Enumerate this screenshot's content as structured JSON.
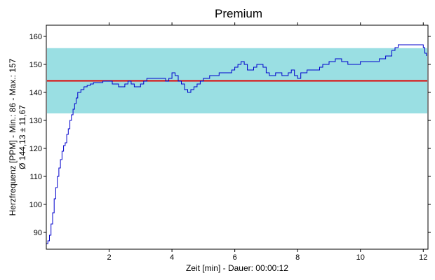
{
  "chart_data": {
    "type": "line",
    "title": "Premium",
    "xlabel": "Zeit [min] - Dauer: 00:00:12",
    "ylabel_lines": [
      "Herzfrequenz [PPM] - Min.: 86 - Max.: 157",
      "Ø 144,13 ± 11,67"
    ],
    "xlim": [
      0,
      12.15
    ],
    "ylim": [
      84,
      164
    ],
    "x_ticks": [
      2,
      4,
      6,
      8,
      10,
      12
    ],
    "y_ticks": [
      90,
      100,
      110,
      120,
      130,
      140,
      150,
      160
    ],
    "grid": false,
    "reference_band": {
      "from": 132.5,
      "to": 155.8,
      "color": "#9adfe3"
    },
    "reference_line": {
      "value": 144.13,
      "color": "#e00000"
    },
    "series": [
      {
        "color": "#0000cc",
        "x": [
          0,
          0.05,
          0.1,
          0.15,
          0.2,
          0.25,
          0.3,
          0.35,
          0.4,
          0.45,
          0.5,
          0.55,
          0.6,
          0.65,
          0.7,
          0.75,
          0.8,
          0.85,
          0.9,
          0.95,
          1.0,
          1.1,
          1.2,
          1.3,
          1.4,
          1.5,
          1.6,
          1.7,
          1.8,
          1.9,
          2.0,
          2.1,
          2.3,
          2.5,
          2.6,
          2.7,
          2.8,
          2.9,
          3.0,
          3.1,
          3.2,
          3.5,
          3.8,
          3.9,
          4.0,
          4.1,
          4.2,
          4.3,
          4.4,
          4.5,
          4.6,
          4.7,
          4.8,
          4.9,
          5.0,
          5.2,
          5.5,
          5.7,
          5.9,
          6.0,
          6.1,
          6.2,
          6.3,
          6.4,
          6.5,
          6.6,
          6.7,
          6.8,
          6.9,
          7.0,
          7.1,
          7.2,
          7.3,
          7.5,
          7.7,
          7.8,
          7.9,
          8.0,
          8.1,
          8.3,
          8.5,
          8.7,
          8.8,
          9.0,
          9.2,
          9.4,
          9.6,
          9.8,
          10.0,
          10.2,
          10.4,
          10.6,
          10.8,
          10.9,
          11.0,
          11.1,
          11.2,
          11.4,
          11.6,
          11.8,
          12.0,
          12.05,
          12.1
        ],
        "y": [
          86,
          87,
          89,
          93,
          97,
          102,
          106,
          110,
          113,
          116,
          119,
          121,
          122,
          125,
          127,
          130,
          132,
          134,
          136,
          138,
          140,
          141,
          142,
          142.5,
          143,
          143.5,
          143.5,
          143.5,
          144,
          144,
          144,
          143,
          142,
          143,
          144,
          143,
          142,
          142,
          143,
          144,
          145,
          145,
          144,
          145,
          147,
          146,
          144,
          143,
          141,
          140,
          141,
          142,
          143,
          144,
          145,
          146,
          147,
          147,
          148,
          149,
          150,
          151,
          150,
          148,
          148,
          149,
          150,
          150,
          149,
          147,
          146,
          146,
          147,
          146,
          147,
          148,
          146,
          145,
          147,
          148,
          148,
          149,
          150,
          151,
          152,
          151,
          150,
          150,
          151,
          151,
          151,
          152,
          153,
          153,
          155,
          156,
          157,
          157,
          157,
          157,
          156,
          154,
          153
        ]
      }
    ]
  }
}
